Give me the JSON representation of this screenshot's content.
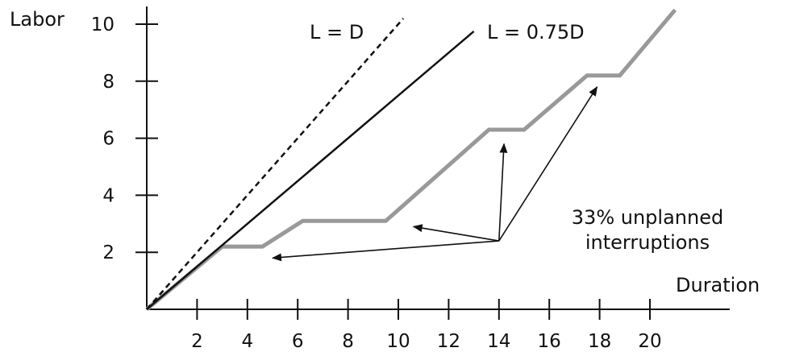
{
  "chart_data": {
    "type": "line",
    "title": "",
    "xlabel": "Duration",
    "ylabel": "Labor",
    "xlim": [
      0,
      22.5
    ],
    "ylim": [
      0,
      11
    ],
    "xticks": [
      2,
      4,
      6,
      8,
      10,
      12,
      14,
      16,
      18,
      20
    ],
    "yticks": [
      2,
      4,
      6,
      8,
      10
    ],
    "grid": false,
    "series": [
      {
        "name": "L = D",
        "style": "dashed",
        "color": "#111111",
        "points": [
          [
            0,
            0
          ],
          [
            10.2,
            10.2
          ]
        ]
      },
      {
        "name": "L = 0.75D",
        "style": "solid",
        "color": "#111111",
        "points": [
          [
            0,
            0
          ],
          [
            13,
            9.75
          ]
        ]
      },
      {
        "name": "",
        "style": "solid-thick",
        "color": "#999999",
        "points": [
          [
            0,
            0
          ],
          [
            3,
            2.2
          ],
          [
            4.6,
            2.2
          ],
          [
            6.2,
            3.1
          ],
          [
            9.5,
            3.1
          ],
          [
            13.6,
            6.3
          ],
          [
            15,
            6.3
          ],
          [
            17.5,
            8.2
          ],
          [
            18.8,
            8.2
          ],
          [
            21,
            10.5
          ]
        ]
      }
    ],
    "annotations": [
      {
        "text_lines": [
          "33% unplanned",
          "interruptions"
        ],
        "arrow_origin": [
          14,
          2.4
        ],
        "arrow_targets": [
          [
            5,
            1.8
          ],
          [
            10.6,
            2.9
          ],
          [
            14.2,
            5.8
          ],
          [
            17.9,
            7.8
          ]
        ]
      }
    ]
  }
}
